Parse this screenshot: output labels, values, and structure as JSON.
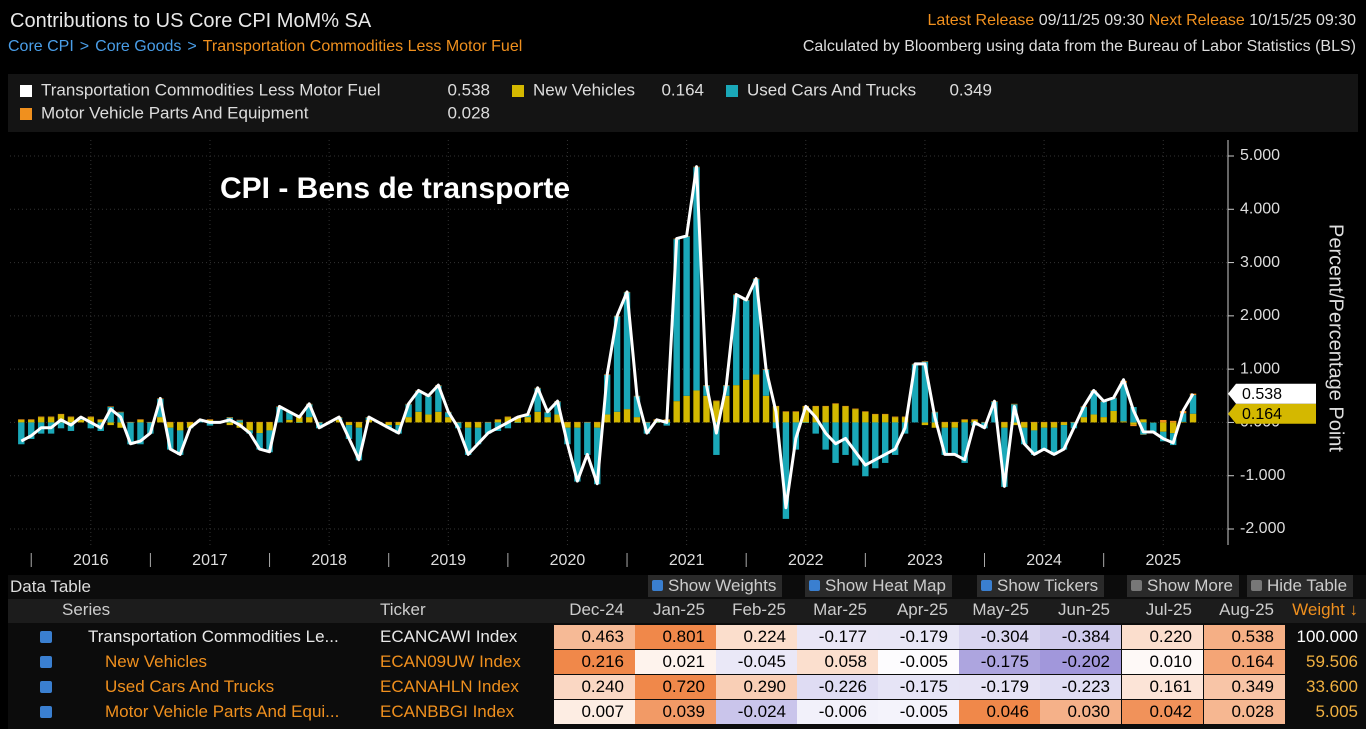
{
  "header": {
    "title": "Contributions to US Core CPI MoM% SA",
    "breadcrumb": [
      "Core CPI",
      "Core Goods",
      "Transportation Commodities Less Motor Fuel"
    ],
    "separator": ">",
    "latest_label": "Latest Release",
    "latest": "09/11/25 09:30",
    "next_label": "Next Release",
    "next": "10/15/25 09:30",
    "source": "Calculated by Bloomberg using data from the Bureau of Labor Statistics (BLS)"
  },
  "chart_data": {
    "type": "combo",
    "annotation": "CPI - Bens de transporte",
    "y_label": "Percent/Percentage Point",
    "categories": [
      null,
      null,
      null,
      null,
      null,
      null,
      null,
      "2016",
      null,
      null,
      null,
      null,
      null,
      null,
      null,
      null,
      null,
      null,
      null,
      "2017",
      null,
      null,
      null,
      null,
      null,
      null,
      null,
      null,
      null,
      null,
      null,
      "2018",
      null,
      null,
      null,
      null,
      null,
      null,
      null,
      null,
      null,
      null,
      null,
      "2019",
      null,
      null,
      null,
      null,
      null,
      null,
      null,
      null,
      null,
      null,
      null,
      "2020",
      null,
      null,
      null,
      null,
      null,
      null,
      null,
      null,
      null,
      null,
      null,
      "2021",
      null,
      null,
      null,
      null,
      null,
      null,
      null,
      null,
      null,
      null,
      null,
      "2022",
      null,
      null,
      null,
      null,
      null,
      null,
      null,
      null,
      null,
      null,
      null,
      "2023",
      null,
      null,
      null,
      null,
      null,
      null,
      null,
      null,
      null,
      null,
      null,
      "2024",
      null,
      null,
      null,
      null,
      null,
      null,
      null,
      null,
      null,
      null,
      null,
      "2025",
      null,
      null,
      null
    ],
    "ylim": [
      -2.3,
      5.3
    ],
    "yticks": [
      {
        "value": 5,
        "label": "5.000"
      },
      {
        "value": 4,
        "label": "4.000"
      },
      {
        "value": 3,
        "label": "3.000"
      },
      {
        "value": 2,
        "label": "2.000"
      },
      {
        "value": 1,
        "label": "1.000"
      },
      {
        "value": 0,
        "label": "0.000"
      },
      {
        "value": -1,
        "label": "-1.000"
      },
      {
        "value": -2,
        "label": "-2.000"
      }
    ],
    "grid": true,
    "series": [
      {
        "name": "Transportation Commodities Less Motor Fuel",
        "color": "#ffffff",
        "kind": "line",
        "last_value": 0.538,
        "values": [
          -0.35,
          -0.25,
          -0.1,
          -0.1,
          0.05,
          -0.05,
          0.1,
          0.0,
          -0.1,
          0.25,
          0.1,
          -0.4,
          -0.35,
          -0.2,
          0.45,
          -0.5,
          -0.6,
          -0.1,
          0.05,
          0.0,
          0.0,
          0.05,
          -0.05,
          -0.2,
          -0.5,
          -0.55,
          0.3,
          0.2,
          0.1,
          0.35,
          -0.1,
          0.0,
          0.1,
          -0.3,
          -0.7,
          0.1,
          0.0,
          -0.1,
          -0.2,
          0.35,
          0.6,
          0.5,
          0.7,
          0.2,
          -0.1,
          -0.6,
          -0.4,
          -0.2,
          -0.1,
          0.0,
          0.1,
          0.15,
          0.65,
          0.2,
          0.4,
          -0.4,
          -1.1,
          -0.6,
          -1.15,
          0.9,
          2.0,
          2.45,
          0.5,
          -0.2,
          0.05,
          0.0,
          3.45,
          3.5,
          4.8,
          0.7,
          -0.2,
          0.7,
          2.4,
          2.3,
          2.7,
          1.0,
          0.2,
          -1.6,
          -0.3,
          0.3,
          0.1,
          -0.2,
          -0.4,
          -0.3,
          -0.55,
          -0.8,
          -0.7,
          -0.6,
          -0.5,
          -0.1,
          1.1,
          1.1,
          0.1,
          -0.6,
          -0.6,
          -0.7,
          0.0,
          -0.1,
          0.4,
          -1.2,
          0.3,
          -0.4,
          -0.6,
          -0.5,
          -0.6,
          -0.5,
          -0.1,
          0.3,
          0.6,
          0.4,
          0.463,
          0.801,
          0.224,
          -0.177,
          -0.179,
          -0.304,
          -0.384,
          0.22,
          0.538
        ]
      },
      {
        "name": "New Vehicles",
        "color": "#d4b800",
        "kind": "bar",
        "last_value": 0.164,
        "values": [
          0.05,
          0.05,
          0.1,
          0.1,
          0.15,
          0.1,
          0.05,
          0.1,
          0.05,
          -0.05,
          -0.1,
          0.0,
          0.05,
          0.0,
          0.1,
          -0.1,
          -0.15,
          -0.1,
          0.0,
          0.05,
          0.0,
          -0.05,
          -0.1,
          -0.15,
          -0.2,
          -0.15,
          0.0,
          0.05,
          0.1,
          0.1,
          0.0,
          0.0,
          0.05,
          -0.05,
          -0.1,
          0.05,
          0.0,
          -0.05,
          -0.05,
          0.1,
          0.2,
          0.15,
          0.2,
          0.1,
          0.0,
          -0.1,
          -0.1,
          0.0,
          0.05,
          0.1,
          0.1,
          0.1,
          0.2,
          0.1,
          0.15,
          -0.1,
          -0.1,
          0.0,
          -0.1,
          0.15,
          0.2,
          0.25,
          0.1,
          0.0,
          0.05,
          0.05,
          0.4,
          0.5,
          0.6,
          0.5,
          0.4,
          0.5,
          0.7,
          0.8,
          0.9,
          0.5,
          0.3,
          0.2,
          0.2,
          0.3,
          0.3,
          0.3,
          0.35,
          0.3,
          0.25,
          0.2,
          0.15,
          0.15,
          0.1,
          0.1,
          0.0,
          -0.05,
          -0.1,
          -0.1,
          -0.1,
          0.05,
          0.05,
          0.0,
          0.0,
          -0.1,
          -0.05,
          -0.1,
          -0.15,
          -0.1,
          -0.1,
          -0.05,
          0.0,
          0.1,
          0.15,
          0.1,
          0.216,
          0.021,
          -0.045,
          0.058,
          -0.005,
          -0.175,
          -0.202,
          0.01,
          0.164
        ]
      },
      {
        "name": "Used Cars And Trucks",
        "color": "#1aa8b8",
        "kind": "bar",
        "last_value": 0.349,
        "values": [
          -0.41,
          -0.31,
          -0.21,
          -0.21,
          -0.11,
          -0.16,
          0.04,
          -0.11,
          -0.16,
          0.29,
          0.19,
          -0.41,
          -0.41,
          -0.21,
          0.34,
          -0.41,
          -0.46,
          -0.01,
          0.04,
          -0.06,
          -0.01,
          0.09,
          0.04,
          -0.06,
          -0.31,
          -0.41,
          0.29,
          0.14,
          -0.01,
          0.24,
          -0.11,
          -0.01,
          0.04,
          -0.26,
          -0.61,
          0.04,
          -0.01,
          -0.06,
          -0.16,
          0.24,
          0.39,
          0.34,
          0.49,
          0.09,
          -0.11,
          -0.51,
          -0.31,
          -0.21,
          -0.16,
          -0.11,
          -0.01,
          0.04,
          0.44,
          0.09,
          0.24,
          -0.31,
          -1.01,
          -0.61,
          -1.06,
          0.74,
          1.79,
          2.19,
          0.39,
          -0.21,
          -0.01,
          -0.06,
          3.04,
          2.99,
          4.19,
          0.19,
          -0.61,
          0.19,
          1.69,
          1.49,
          1.79,
          0.49,
          -0.11,
          -1.81,
          -0.51,
          -0.01,
          -0.21,
          -0.51,
          -0.76,
          -0.61,
          -0.81,
          -1.01,
          -0.86,
          -0.76,
          -0.61,
          -0.21,
          1.09,
          1.14,
          0.19,
          -0.51,
          -0.51,
          -0.76,
          -0.06,
          -0.11,
          0.39,
          -1.11,
          0.34,
          -0.31,
          -0.46,
          -0.41,
          -0.51,
          -0.46,
          -0.11,
          0.19,
          0.44,
          0.29,
          0.24,
          0.72,
          0.29,
          -0.226,
          -0.175,
          -0.179,
          -0.223,
          0.161,
          0.349
        ]
      },
      {
        "name": "Motor Vehicle Parts And Equipment",
        "color": "#f0901e",
        "kind": "bar",
        "last_value": 0.028,
        "values": [
          0.01,
          0.01,
          0.01,
          0.01,
          0.01,
          0.01,
          0.01,
          0.01,
          0.01,
          0.01,
          0.01,
          0.01,
          0.01,
          0.01,
          0.01,
          0.01,
          0.01,
          0.01,
          0.01,
          0.01,
          0.01,
          0.01,
          0.01,
          0.01,
          0.01,
          0.01,
          0.01,
          0.01,
          0.01,
          0.01,
          0.01,
          0.01,
          0.01,
          0.01,
          0.01,
          0.01,
          0.01,
          0.01,
          0.01,
          0.01,
          0.01,
          0.01,
          0.01,
          0.01,
          0.01,
          0.01,
          0.01,
          0.01,
          0.01,
          0.01,
          0.01,
          0.01,
          0.01,
          0.01,
          0.01,
          0.01,
          0.01,
          0.01,
          0.01,
          0.01,
          0.01,
          0.01,
          0.01,
          0.01,
          0.01,
          0.01,
          0.01,
          0.01,
          0.01,
          0.01,
          0.01,
          0.01,
          0.01,
          0.01,
          0.01,
          0.01,
          0.01,
          0.01,
          0.01,
          0.01,
          0.01,
          0.01,
          0.01,
          0.01,
          0.01,
          0.01,
          0.01,
          0.01,
          0.01,
          0.01,
          0.01,
          0.01,
          0.01,
          0.01,
          0.01,
          0.01,
          0.01,
          0.01,
          0.01,
          0.01,
          0.01,
          0.01,
          0.01,
          0.01,
          0.01,
          0.01,
          0.01,
          0.01,
          0.01,
          0.01,
          0.007,
          0.039,
          -0.024,
          -0.006,
          -0.005,
          0.046,
          0.03,
          0.042,
          0.028
        ]
      }
    ]
  },
  "data_table": {
    "title": "Data Table",
    "options": [
      "Show Weights",
      "Show Heat Map",
      "Show Tickers",
      "Show More",
      "Hide Table"
    ],
    "columns": [
      "Series",
      "Ticker",
      "Dec-24",
      "Jan-25",
      "Feb-25",
      "Mar-25",
      "Apr-25",
      "May-25",
      "Jun-25",
      "Jul-25",
      "Aug-25",
      "Weight ↓"
    ],
    "rows": [
      {
        "name": "Transportation Commodities Le...",
        "ticker": "ECANCAWI Index",
        "values": [
          "0.463",
          "0.801",
          "0.224",
          "-0.177",
          "-0.179",
          "-0.304",
          "-0.384",
          "0.220",
          "0.538"
        ],
        "weight": "100.000"
      },
      {
        "name": "New Vehicles",
        "ticker": "ECAN09UW Index",
        "values": [
          "0.216",
          "0.021",
          "-0.045",
          "0.058",
          "-0.005",
          "-0.175",
          "-0.202",
          "0.010",
          "0.164"
        ],
        "weight": "59.506"
      },
      {
        "name": "Used Cars And Trucks",
        "ticker": "ECANAHLN Index",
        "values": [
          "0.240",
          "0.720",
          "0.290",
          "-0.226",
          "-0.175",
          "-0.179",
          "-0.223",
          "0.161",
          "0.349"
        ],
        "weight": "33.600"
      },
      {
        "name": "Motor Vehicle Parts And Equi...",
        "ticker": "ECANBBGI Index",
        "values": [
          "0.007",
          "0.039",
          "-0.024",
          "-0.006",
          "-0.005",
          "0.046",
          "0.030",
          "0.042",
          "0.028"
        ],
        "weight": "5.005"
      }
    ]
  }
}
